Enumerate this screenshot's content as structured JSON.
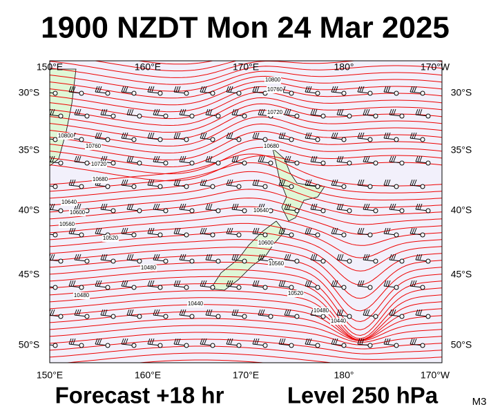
{
  "title": "1900 NZDT Mon 24 Mar 2025",
  "lon_labels_top": [
    "150°E",
    "160°E",
    "170°E",
    "180°",
    "170°W"
  ],
  "lon_labels_bottom": [
    "150°E",
    "160°E",
    "170°E",
    "180°",
    "170°W"
  ],
  "lat_labels_left": [
    "30°S",
    "35°S",
    "40°S",
    "45°S",
    "50°S"
  ],
  "lat_labels_right": [
    "30°S",
    "35°S",
    "40°S",
    "45°S",
    "50°S"
  ],
  "contour_labels": [
    "10800",
    "10760",
    "10720",
    "10680",
    "10640",
    "10600",
    "10560",
    "10520",
    "10480",
    "10480",
    "10440",
    "10800",
    "10760",
    "10720",
    "10680",
    "10640",
    "10600",
    "10560",
    "10520",
    "10480",
    "10440"
  ],
  "footer": {
    "forecast": "Forecast +18 hr",
    "level": "Level 250 hPa",
    "model": "M3"
  }
}
